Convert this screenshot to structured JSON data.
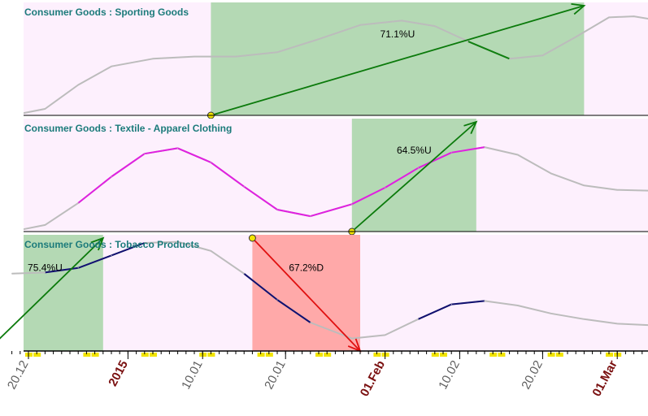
{
  "colors": {
    "panel_bg": "#fdf0fd",
    "title": "#1c7b7b",
    "grey_line": "#bcbcbc",
    "sporting_series": "#108010",
    "textile_series": "#e020e0",
    "tobacco_series": "#101070",
    "green_zone": "#b4d9b4",
    "red_zone": "#ffa9a9",
    "green_arrow": "#0b7a0b",
    "red_arrow": "#e01010",
    "marker": "#f2e400",
    "tick_marker": "#f2e400",
    "label_normal": "#606060",
    "label_major": "#7a1010"
  },
  "chart_data": {
    "type": "line",
    "x_axis": {
      "unit": "date",
      "range": [
        "2014-12-18",
        "2015-03-07"
      ],
      "tick_labels": [
        {
          "date": "2014-12-20",
          "label": "20.12",
          "major": false
        },
        {
          "date": "2015-01-01",
          "label": "2015",
          "major": true
        },
        {
          "date": "2015-01-10",
          "label": "10.01",
          "major": false
        },
        {
          "date": "2015-01-20",
          "label": "20.01",
          "major": false
        },
        {
          "date": "2015-02-01",
          "label": "01.Feb",
          "major": true
        },
        {
          "date": "2015-02-10",
          "label": "10.02",
          "major": false
        },
        {
          "date": "2015-02-20",
          "label": "20.02",
          "major": false
        },
        {
          "date": "2015-03-01",
          "label": "01.Mar",
          "major": true
        }
      ]
    },
    "panels": [
      {
        "title": "Consumer Goods : Sporting Goods",
        "ylim": [
          0,
          100
        ],
        "series": [
          {
            "date": "2014-12-18",
            "value": 0
          },
          {
            "date": "2014-12-22",
            "value": 6
          },
          {
            "date": "2014-12-26",
            "value": 28
          },
          {
            "date": "2014-12-30",
            "value": 45
          },
          {
            "date": "2015-01-04",
            "value": 52
          },
          {
            "date": "2015-01-09",
            "value": 54
          },
          {
            "date": "2015-01-14",
            "value": 54
          },
          {
            "date": "2015-01-19",
            "value": 58
          },
          {
            "date": "2015-01-24",
            "value": 70
          },
          {
            "date": "2015-01-29",
            "value": 83
          },
          {
            "date": "2015-02-03",
            "value": 87
          },
          {
            "date": "2015-02-07",
            "value": 82
          },
          {
            "date": "2015-02-11",
            "value": 68
          },
          {
            "date": "2015-02-16",
            "value": 52
          },
          {
            "date": "2015-02-20",
            "value": 55
          },
          {
            "date": "2015-02-24",
            "value": 72
          },
          {
            "date": "2015-02-28",
            "value": 90
          },
          {
            "date": "2015-03-03",
            "value": 91
          },
          {
            "date": "2015-03-07",
            "value": 86
          }
        ],
        "highlight_ranges": [
          [
            "2015-02-08",
            "2015-02-18"
          ]
        ],
        "signals": [
          {
            "type": "up",
            "start": "2015-01-11",
            "end": "2015-02-25",
            "label": "71.1%U"
          }
        ]
      },
      {
        "title": "Consumer Goods : Textile - Apparel Clothing",
        "ylim": [
          0,
          100
        ],
        "series": [
          {
            "date": "2014-12-18",
            "value": 0
          },
          {
            "date": "2014-12-22",
            "value": 6
          },
          {
            "date": "2014-12-26",
            "value": 26
          },
          {
            "date": "2014-12-30",
            "value": 50
          },
          {
            "date": "2015-01-03",
            "value": 71
          },
          {
            "date": "2015-01-07",
            "value": 76
          },
          {
            "date": "2015-01-11",
            "value": 63
          },
          {
            "date": "2015-01-15",
            "value": 41
          },
          {
            "date": "2015-01-19",
            "value": 20
          },
          {
            "date": "2015-01-23",
            "value": 14
          },
          {
            "date": "2015-01-28",
            "value": 25
          },
          {
            "date": "2015-02-01",
            "value": 40
          },
          {
            "date": "2015-02-05",
            "value": 58
          },
          {
            "date": "2015-02-09",
            "value": 72
          },
          {
            "date": "2015-02-13",
            "value": 77
          },
          {
            "date": "2015-02-17",
            "value": 70
          },
          {
            "date": "2015-02-21",
            "value": 53
          },
          {
            "date": "2015-02-25",
            "value": 42
          },
          {
            "date": "2015-03-01",
            "value": 38
          },
          {
            "date": "2015-03-07",
            "value": 37
          }
        ],
        "highlight_ranges": [
          [
            "2014-12-24",
            "2015-02-14"
          ]
        ],
        "signals": [
          {
            "type": "up",
            "start": "2015-01-28",
            "end": "2015-02-12",
            "label": "64.5%U"
          }
        ]
      },
      {
        "title": "Consumer Goods : Tobacco Products",
        "ylim": [
          0,
          100
        ],
        "series": [
          {
            "date": "2014-12-18",
            "value": 68
          },
          {
            "date": "2014-12-22",
            "value": 69
          },
          {
            "date": "2014-12-26",
            "value": 73
          },
          {
            "date": "2014-12-30",
            "value": 84
          },
          {
            "date": "2015-01-03",
            "value": 95
          },
          {
            "date": "2015-01-07",
            "value": 96
          },
          {
            "date": "2015-01-11",
            "value": 88
          },
          {
            "date": "2015-01-15",
            "value": 68
          },
          {
            "date": "2015-01-19",
            "value": 45
          },
          {
            "date": "2015-01-23",
            "value": 25
          },
          {
            "date": "2015-01-28",
            "value": 11
          },
          {
            "date": "2015-02-01",
            "value": 14
          },
          {
            "date": "2015-02-05",
            "value": 28
          },
          {
            "date": "2015-02-09",
            "value": 41
          },
          {
            "date": "2015-02-13",
            "value": 44
          },
          {
            "date": "2015-02-17",
            "value": 40
          },
          {
            "date": "2015-02-21",
            "value": 33
          },
          {
            "date": "2015-02-25",
            "value": 28
          },
          {
            "date": "2015-03-01",
            "value": 24
          },
          {
            "date": "2015-03-07",
            "value": 22
          }
        ],
        "highlight_ranges": [
          [
            "2014-12-22",
            "2015-01-03"
          ],
          [
            "2015-01-13",
            "2015-01-25"
          ],
          [
            "2015-02-04",
            "2015-02-16"
          ]
        ],
        "signals": [
          {
            "type": "up",
            "start": "2014-12-15",
            "end": "2014-12-29",
            "label": "75.4%U"
          },
          {
            "type": "down",
            "start": "2015-01-16",
            "end": "2015-01-29",
            "label": "67.2%D"
          }
        ]
      }
    ]
  }
}
